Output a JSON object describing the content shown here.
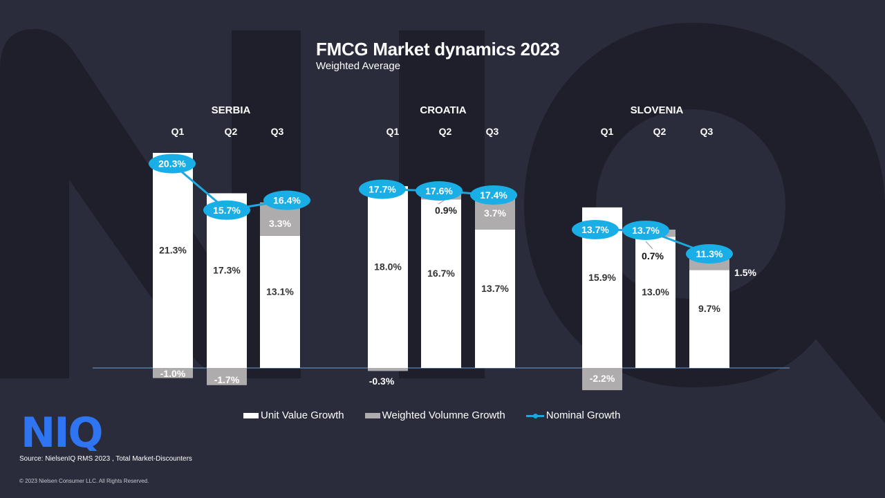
{
  "header": {
    "title": "FMCG Market dynamics 2023",
    "subtitle": "Weighted Average"
  },
  "colors": {
    "background": "#2a2b3b",
    "background_shape": "#1e1f2b",
    "unit_value": "#ffffff",
    "weighted_volume": "#aeacac",
    "nominal": "#1aaee6",
    "nominal_line": "#1ea7dd",
    "baseline": "#6fa3d6",
    "logo": "#2f74f0"
  },
  "chart_data": {
    "type": "bar",
    "stacked": true,
    "title": "FMCG Market dynamics 2023",
    "subtitle": "Weighted Average",
    "groups": [
      {
        "name": "SERBIA",
        "categories": [
          "Q1",
          "Q2",
          "Q3"
        ],
        "unit_value_growth": [
          21.3,
          17.3,
          13.1
        ],
        "weighted_volume_growth": [
          -1.0,
          -1.7,
          3.3
        ],
        "nominal_growth": [
          20.3,
          15.7,
          16.4
        ],
        "unit_value_labels": [
          "21.3%",
          "17.3%",
          "13.1%"
        ],
        "weighted_volume_labels": [
          "-1.0%",
          "-1.7%",
          "3.3%"
        ],
        "nominal_labels": [
          "20.3%",
          "15.7%",
          "16.4%"
        ]
      },
      {
        "name": "CROATIA",
        "categories": [
          "Q1",
          "Q2",
          "Q3"
        ],
        "unit_value_growth": [
          18.0,
          16.7,
          13.7
        ],
        "weighted_volume_growth": [
          -0.3,
          0.9,
          3.7
        ],
        "nominal_growth": [
          17.7,
          17.6,
          17.4
        ],
        "unit_value_labels": [
          "18.0%",
          "16.7%",
          "13.7%"
        ],
        "weighted_volume_labels": [
          "-0.3%",
          "0.9%",
          "3.7%"
        ],
        "nominal_labels": [
          "17.7%",
          "17.6%",
          "17.4%"
        ]
      },
      {
        "name": "SLOVENIA",
        "categories": [
          "Q1",
          "Q2",
          "Q3"
        ],
        "unit_value_growth": [
          15.9,
          13.0,
          9.7
        ],
        "weighted_volume_growth": [
          -2.2,
          0.7,
          1.5
        ],
        "nominal_growth": [
          13.7,
          13.7,
          11.3
        ],
        "unit_value_labels": [
          "15.9%",
          "13.0%",
          "9.7%"
        ],
        "weighted_volume_labels": [
          "-2.2%",
          "0.7%",
          "1.5%"
        ],
        "nominal_labels": [
          "13.7%",
          "13.7%",
          "11.3%"
        ]
      }
    ],
    "legend": [
      "Unit Value Growth",
      "Weighted Volumne Growth",
      "Nominal Growth"
    ],
    "legend_position": "bottom",
    "ylim": [
      -3,
      23
    ],
    "grid": false
  },
  "legend": {
    "unit_value": "Unit Value Growth",
    "weighted_volume": "Weighted Volumne Growth",
    "nominal": "Nominal Growth"
  },
  "footer": {
    "logo_text": "NIQ",
    "source": "Source: NielsenIQ  RMS  2023 , Total Market-Discounters",
    "copyright": "© 2023  Nielsen Consumer LLC. All Rights Reserved."
  }
}
